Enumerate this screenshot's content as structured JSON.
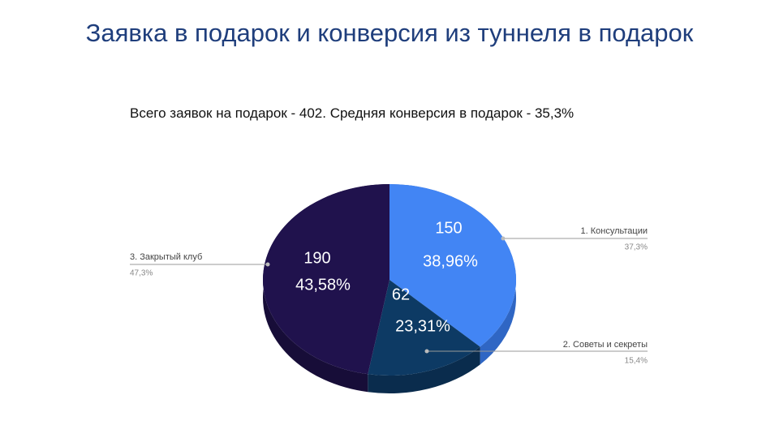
{
  "slide_title": "Заявка в подарок и конверсия из туннеля в подарок",
  "chart_data": {
    "type": "pie",
    "title": "Всего заявок на подарок - 402. Средняя конверсия в подарок - 35,3%",
    "categories": [
      "1. Консультации",
      "2. Советы и секреты",
      "3. Закрытый клуб"
    ],
    "values": [
      150,
      62,
      190
    ],
    "colors": [
      "#4285f4",
      "#0d3a64",
      "#20124d"
    ],
    "side_colors": [
      "#2f66c4",
      "#0a2c4d",
      "#170d38"
    ],
    "shares": [
      37.3,
      15.4,
      47.3
    ],
    "share_labels": [
      "37,3%",
      "15,4%",
      "47,3%"
    ],
    "inner_labels": [
      "38,96%",
      "23,31%",
      "43,58%"
    ]
  }
}
